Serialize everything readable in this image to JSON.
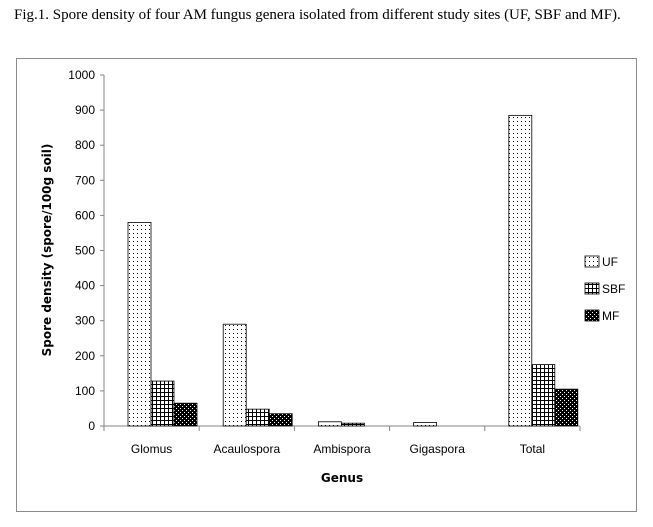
{
  "caption": "Fig.1. Spore density of four AM fungus genera isolated from different study sites (UF, SBF and MF).",
  "chart_data": {
    "type": "bar",
    "title": "",
    "xlabel": "Genus",
    "ylabel": "Spore density (spore/100g soil)",
    "ylim": [
      0,
      1000
    ],
    "yticks": [
      0,
      100,
      200,
      300,
      400,
      500,
      600,
      700,
      800,
      900,
      1000
    ],
    "grid": false,
    "legend_position": "right",
    "categories": [
      "Glomus",
      "Acaulospora",
      "Ambispora",
      "Gigaspora",
      "Total"
    ],
    "series": [
      {
        "name": "UF",
        "pattern": "dots",
        "values": [
          580,
          290,
          12,
          10,
          885
        ]
      },
      {
        "name": "SBF",
        "pattern": "grid",
        "values": [
          128,
          48,
          8,
          0,
          175
        ]
      },
      {
        "name": "MF",
        "pattern": "dense-checker",
        "values": [
          65,
          35,
          0,
          0,
          105
        ]
      }
    ]
  }
}
